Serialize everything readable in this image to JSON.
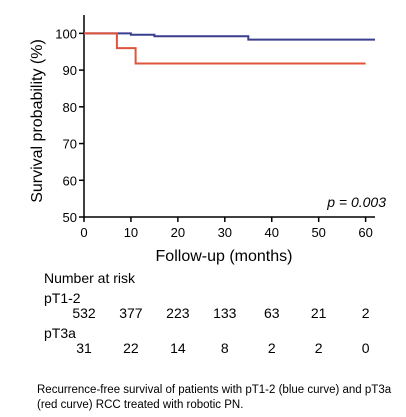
{
  "chart_data": {
    "type": "line",
    "step": true,
    "xlabel": "Follow-up (months)",
    "ylabel": "Survival probability (%)",
    "xlim": [
      0,
      62
    ],
    "ylim": [
      50,
      105
    ],
    "xticks": [
      0,
      10,
      20,
      30,
      40,
      50,
      60
    ],
    "yticks": [
      50,
      60,
      70,
      80,
      90,
      100
    ],
    "annotation": "p = 0.003",
    "series": [
      {
        "name": "pT1-2",
        "color": "#3b3f8f",
        "points": [
          [
            0,
            100
          ],
          [
            10,
            100
          ],
          [
            10,
            99.6
          ],
          [
            15,
            99.6
          ],
          [
            15,
            99.2
          ],
          [
            35,
            99.2
          ],
          [
            35,
            98.3
          ],
          [
            62,
            98.3
          ]
        ]
      },
      {
        "name": "pT3a",
        "color": "#e0533b",
        "points": [
          [
            0,
            100
          ],
          [
            7,
            100
          ],
          [
            7,
            96
          ],
          [
            11,
            96
          ],
          [
            11,
            91.8
          ],
          [
            60,
            91.8
          ]
        ]
      }
    ]
  },
  "risk_table": {
    "title": "Number at risk",
    "times": [
      0,
      10,
      20,
      30,
      40,
      50,
      60
    ],
    "groups": [
      {
        "label": "pT1-2",
        "values": [
          "532",
          "377",
          "223",
          "133",
          "63",
          "21",
          "2"
        ]
      },
      {
        "label": "pT3a",
        "values": [
          "31",
          "22",
          "14",
          "8",
          "2",
          "2",
          "0"
        ]
      }
    ]
  },
  "caption": "Recurrence-free survival of patients with pT1-2 (blue curve) and pT3a (red curve) RCC treated with robotic PN."
}
